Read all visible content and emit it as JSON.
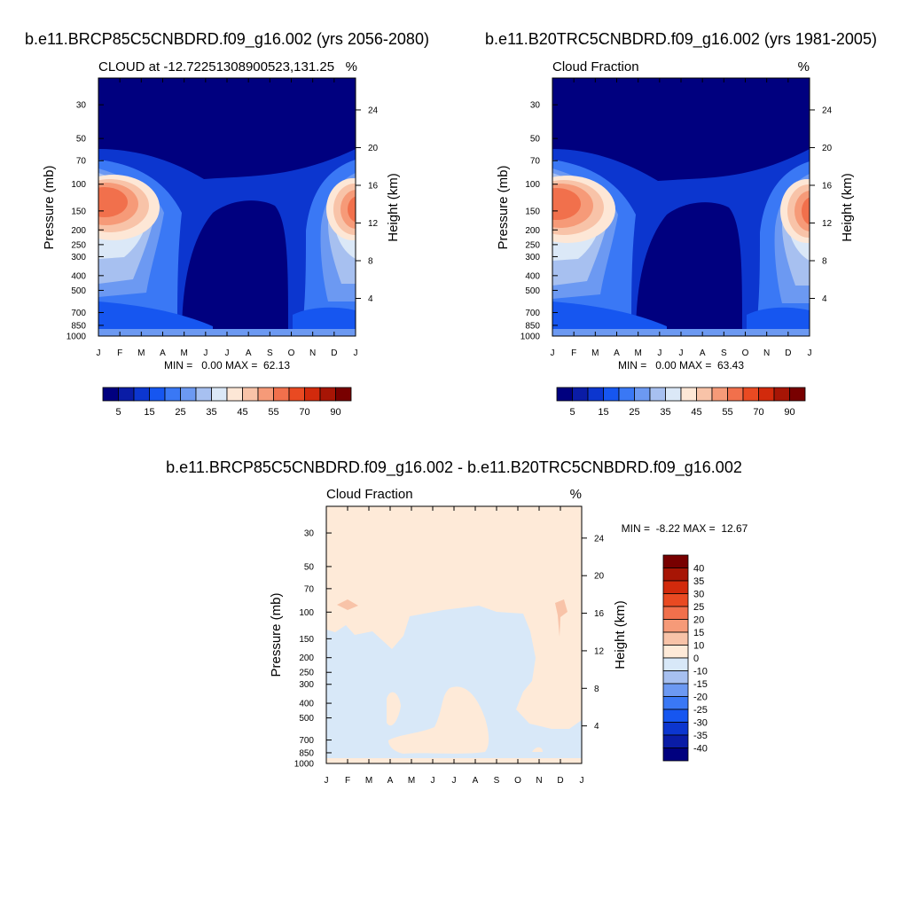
{
  "figure": {
    "top_title_left": "b.e11.BRCP85C5CNBDRD.f09_g16.002 (yrs 2056-2080)",
    "top_title_right": "b.e11.B20TRC5CNBDRD.f09_g16.002 (yrs 1981-2005)",
    "diff_title": "b.e11.BRCP85C5CNBDRD.f09_g16.002 - b.e11.B20TRC5CNBDRD.f09_g16.002"
  },
  "colors": {
    "cloud_palette": [
      "#00007f",
      "#0a1ca6",
      "#0c36cf",
      "#1656f0",
      "#3a78f5",
      "#6c99f2",
      "#a7c0f0",
      "#dbe8f7",
      "#fde7d6",
      "#f8c3a8",
      "#f69a78",
      "#f1704c",
      "#e94a22",
      "#d22a0c",
      "#a71505",
      "#780000"
    ],
    "diff_palette": [
      "#00007f",
      "#0a1ca6",
      "#0c36cf",
      "#1656f0",
      "#3a78f5",
      "#6c99f2",
      "#a7c0f0",
      "#d8e8f8",
      "#feead8",
      "#f8c3a8",
      "#f69a78",
      "#f1704c",
      "#e94a22",
      "#d22a0c",
      "#a71505",
      "#780000"
    ]
  },
  "chart_data": [
    {
      "id": "left",
      "type": "contour",
      "title": "CLOUD at -12.72251308900523,131.25",
      "units": "%",
      "ylabel": "Pressure (mb)",
      "ylabel_right": "Height (km)",
      "x_ticks": [
        "J",
        "F",
        "M",
        "A",
        "M",
        "J",
        "J",
        "A",
        "S",
        "O",
        "N",
        "D",
        "J"
      ],
      "y_ticks": [
        "30",
        "50",
        "70",
        "100",
        "150",
        "200",
        "250",
        "300",
        "400",
        "500",
        "700",
        "850",
        "1000"
      ],
      "y_ticks_right": [
        "24",
        "20",
        "16",
        "12",
        "8",
        "4"
      ],
      "ylim": [
        1000,
        20
      ],
      "min_max_text": "MIN =   0.00 MAX =  62.13",
      "min": 0.0,
      "max": 62.13,
      "colorbar_labels": [
        "5",
        "15",
        "25",
        "35",
        "45",
        "55",
        "70",
        "90"
      ],
      "colorbar_levels": [
        5,
        10,
        15,
        20,
        25,
        30,
        35,
        40,
        45,
        50,
        55,
        60,
        70,
        80,
        90
      ]
    },
    {
      "id": "right",
      "type": "contour",
      "title": "Cloud Fraction",
      "units": "%",
      "ylabel": "Pressure (mb)",
      "ylabel_right": "Height (km)",
      "x_ticks": [
        "J",
        "F",
        "M",
        "A",
        "M",
        "J",
        "J",
        "A",
        "S",
        "O",
        "N",
        "D",
        "J"
      ],
      "y_ticks": [
        "30",
        "50",
        "70",
        "100",
        "150",
        "200",
        "250",
        "300",
        "400",
        "500",
        "700",
        "850",
        "1000"
      ],
      "y_ticks_right": [
        "24",
        "20",
        "16",
        "12",
        "8",
        "4"
      ],
      "ylim": [
        1000,
        20
      ],
      "min_max_text": "MIN =   0.00 MAX =  63.43",
      "min": 0.0,
      "max": 63.43,
      "colorbar_labels": [
        "5",
        "15",
        "25",
        "35",
        "45",
        "55",
        "70",
        "90"
      ],
      "colorbar_levels": [
        5,
        10,
        15,
        20,
        25,
        30,
        35,
        40,
        45,
        50,
        55,
        60,
        70,
        80,
        90
      ]
    },
    {
      "id": "diff",
      "type": "contour",
      "title": "Cloud Fraction",
      "units": "%",
      "ylabel": "Pressure (mb)",
      "ylabel_right": "Height (km)",
      "x_ticks": [
        "J",
        "F",
        "M",
        "A",
        "M",
        "J",
        "J",
        "A",
        "S",
        "O",
        "N",
        "D",
        "J"
      ],
      "y_ticks": [
        "30",
        "50",
        "70",
        "100",
        "150",
        "200",
        "250",
        "300",
        "400",
        "500",
        "700",
        "850",
        "1000"
      ],
      "y_ticks_right": [
        "24",
        "20",
        "16",
        "12",
        "8",
        "4"
      ],
      "ylim": [
        1000,
        20
      ],
      "min_max_text": "MIN =  -8.22 MAX =  12.67",
      "min": -8.22,
      "max": 12.67,
      "colorbar_labels": [
        "40",
        "35",
        "30",
        "25",
        "20",
        "15",
        "10",
        "0",
        "-10",
        "-15",
        "-20",
        "-25",
        "-30",
        "-35",
        "-40"
      ],
      "colorbar_levels": [
        -40,
        -35,
        -30,
        -25,
        -20,
        -15,
        -10,
        0,
        10,
        15,
        20,
        25,
        30,
        35,
        40
      ]
    }
  ]
}
